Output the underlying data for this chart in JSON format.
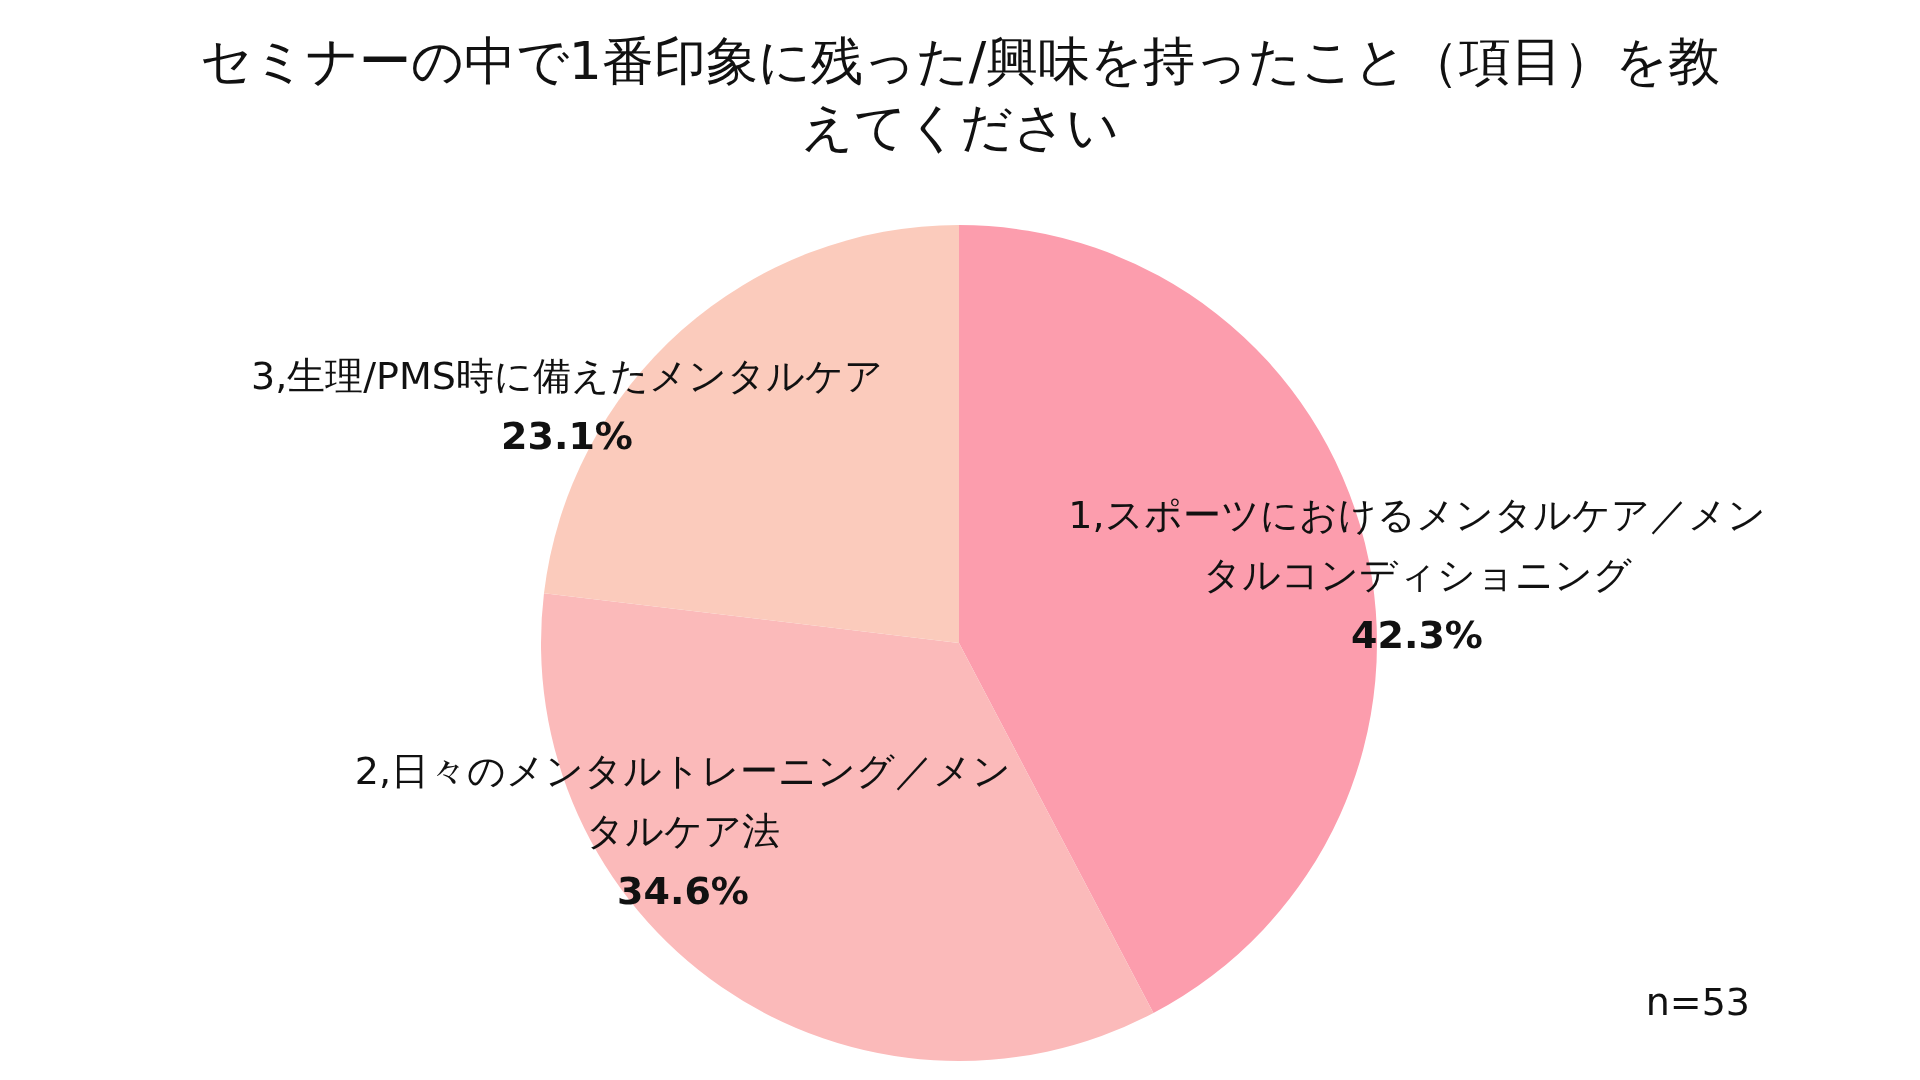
{
  "chart_data": {
    "type": "pie",
    "title": "セミナーの中で1番印象に残った/興味を持ったこと（項目）を教えてください",
    "categories": [
      "1,スポーツにおけるメンタルケア／メンタルコンディショニング",
      "2,日々のメンタルトレーニング／メンタルケア法",
      "3,生理/PMS時に備えたメンタルケア"
    ],
    "values": [
      42.3,
      34.6,
      23.1
    ],
    "value_labels": [
      "42.3%",
      "34.6%",
      "23.1%"
    ],
    "colors": [
      "#fc9dad",
      "#fbbaba",
      "#fbcbbc"
    ],
    "annotations": [
      "n=53"
    ]
  }
}
